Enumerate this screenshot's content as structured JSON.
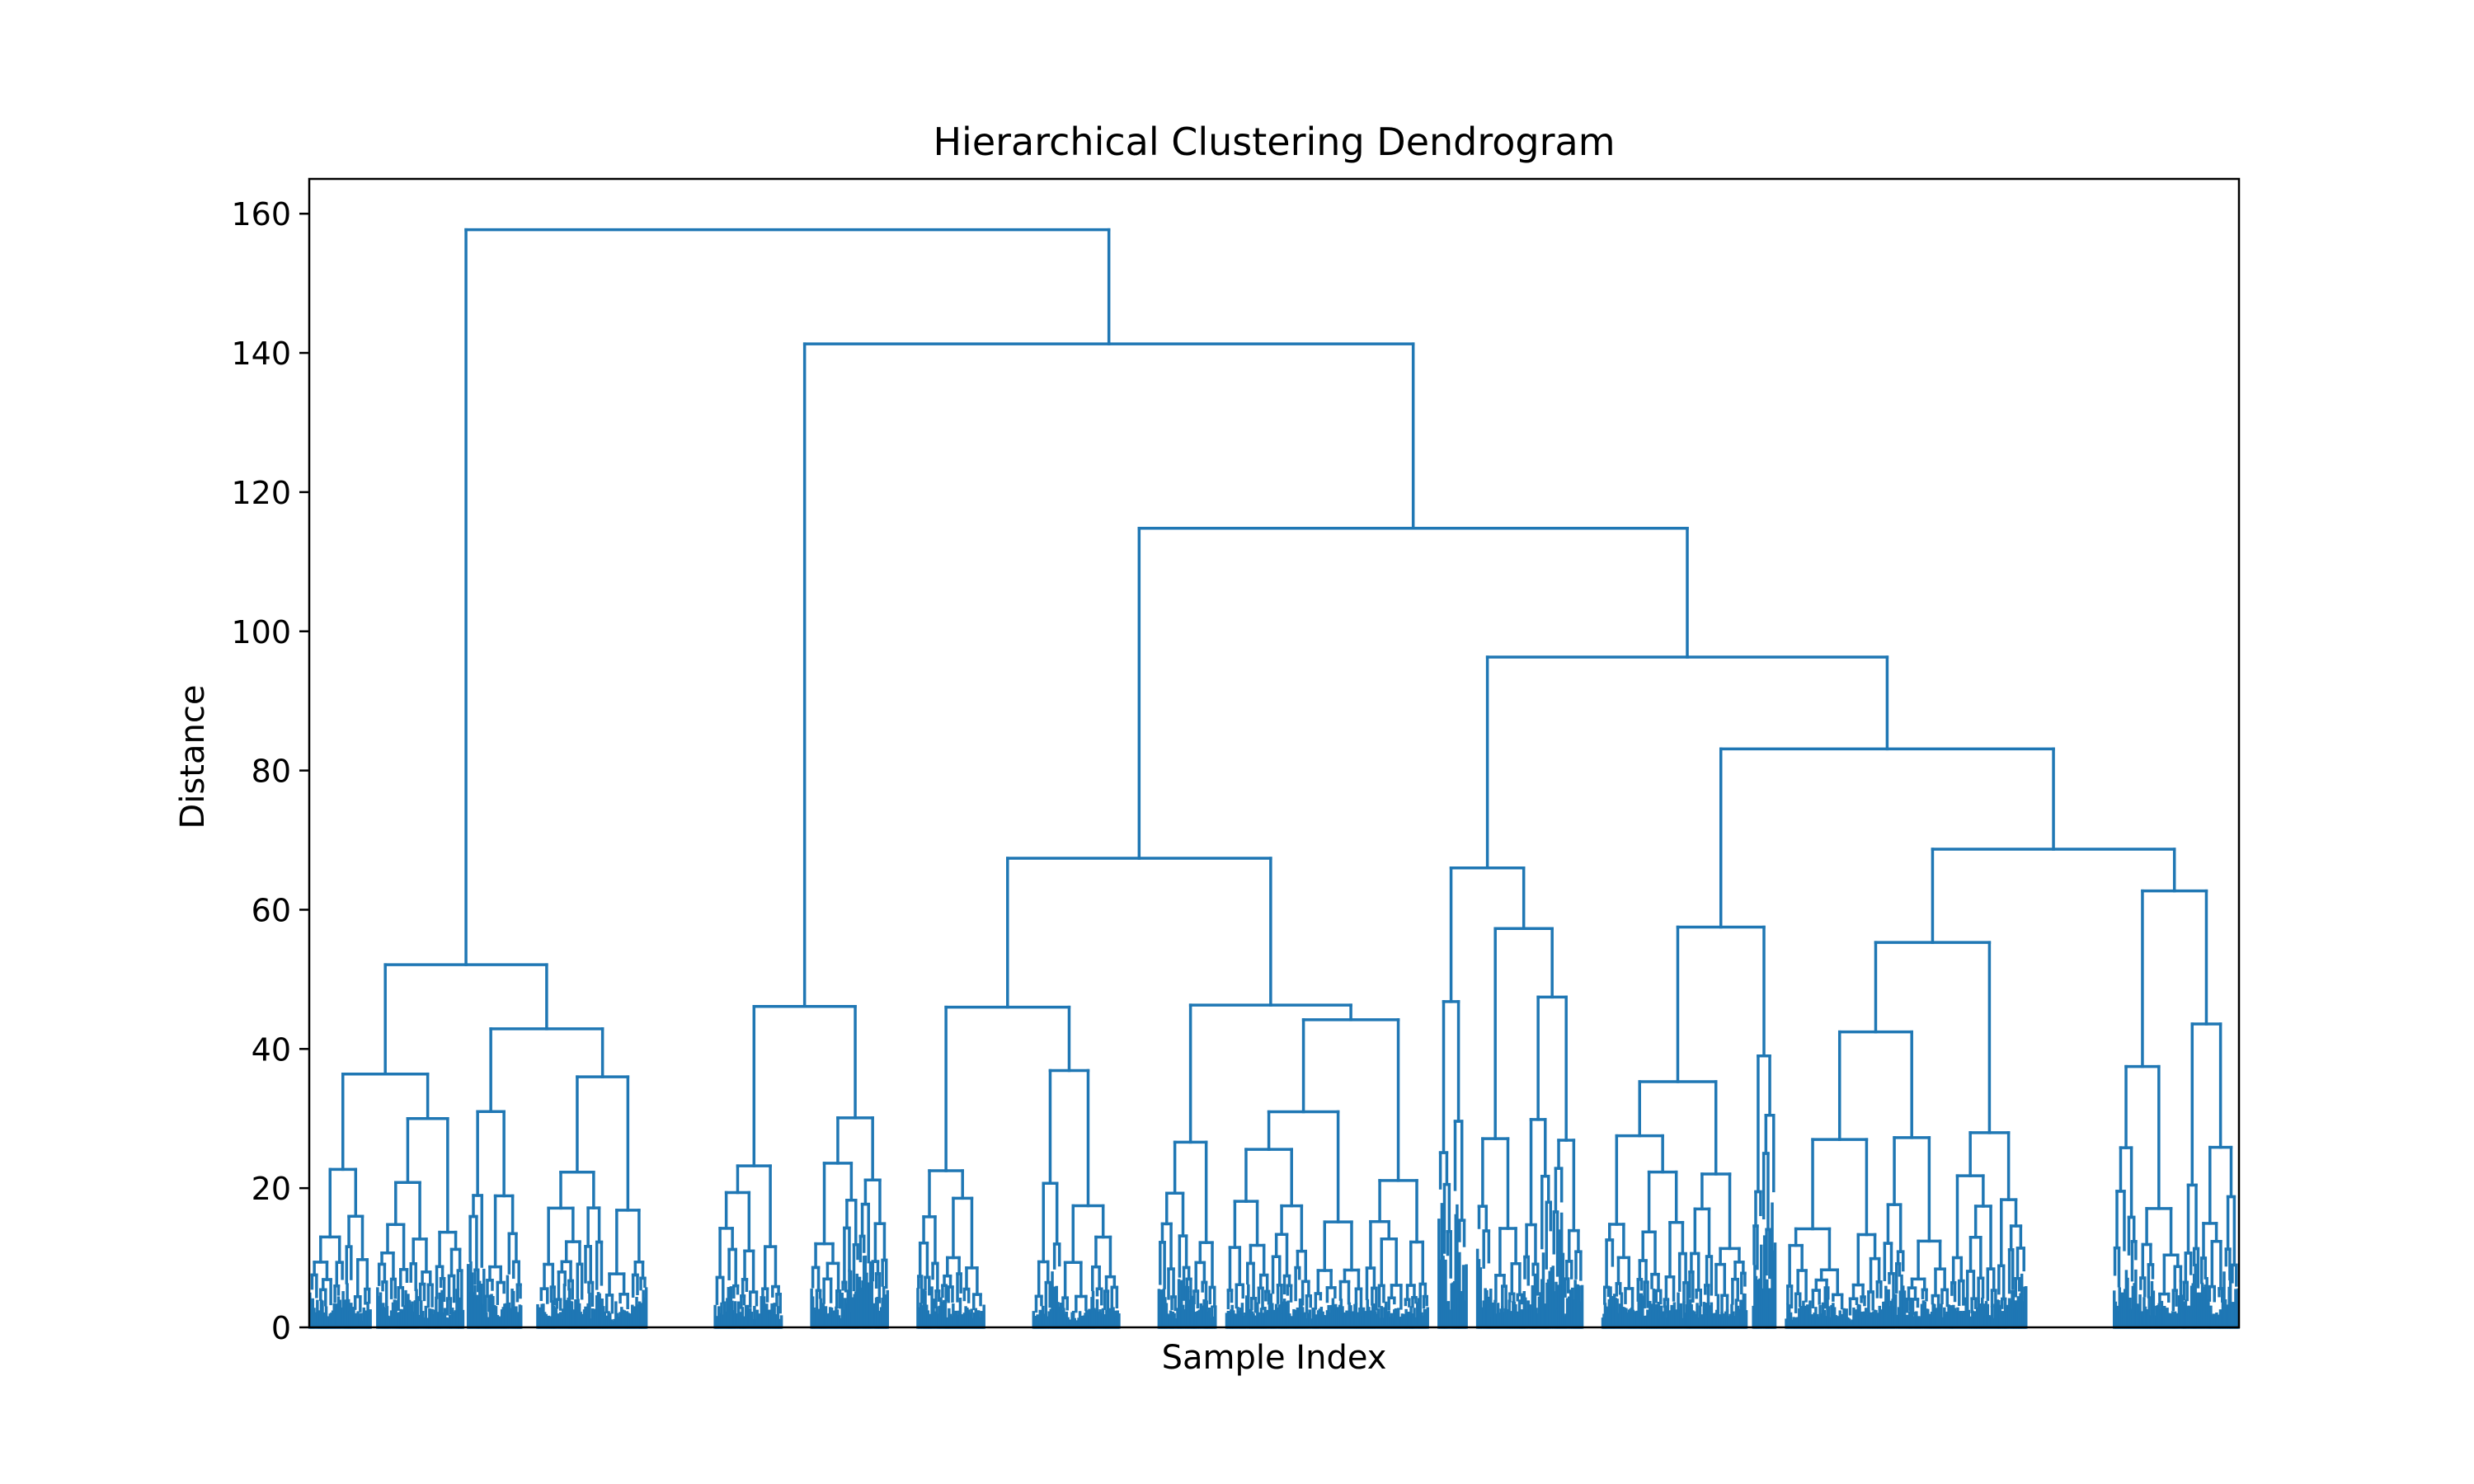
{
  "chart_data": {
    "type": "dendrogram",
    "title": "Hierarchical Clustering Dendrogram",
    "xlabel": "Sample Index",
    "ylabel": "Distance",
    "ylim": [
      0,
      165
    ],
    "yticks": [
      0,
      20,
      40,
      60,
      80,
      100,
      120,
      140,
      160
    ],
    "x_tick_labels_shown": false,
    "leaf_range": [
      0,
      1000
    ],
    "link_color": "#1f77b4",
    "grid": false,
    "merges": [
      {
        "id": "root",
        "height": 157.7,
        "children": [
          "left_group",
          "right_group"
        ]
      },
      {
        "id": "left_group",
        "height": 52.1,
        "children": [
          "lg_a",
          "lg_b"
        ]
      },
      {
        "id": "lg_a",
        "height": 36.4,
        "children": [
          "lg_a1",
          "lg_a2"
        ]
      },
      {
        "id": "lg_a1",
        "height": 22.7
      },
      {
        "id": "lg_a2",
        "height": 30.0
      },
      {
        "id": "lg_b",
        "height": 42.9,
        "children": [
          "lg_b1",
          "lg_b2"
        ]
      },
      {
        "id": "lg_b1",
        "height": 31.0
      },
      {
        "id": "lg_b2",
        "height": 36.0
      },
      {
        "id": "right_group",
        "height": 141.3,
        "children": [
          "rg_a",
          "rg_b"
        ]
      },
      {
        "id": "rg_a",
        "height": 46.1,
        "children": [
          "rg_a1",
          "rg_a2"
        ]
      },
      {
        "id": "rg_a1",
        "height": 23.2
      },
      {
        "id": "rg_a2",
        "height": 30.1
      },
      {
        "id": "rg_b",
        "height": 114.8,
        "children": [
          "mid_group",
          "far_group"
        ]
      },
      {
        "id": "mid_group",
        "height": 67.4,
        "children": [
          "mg_a",
          "mg_b"
        ]
      },
      {
        "id": "mg_a",
        "height": 46.0,
        "children": [
          "mg_a1",
          "mg_a2"
        ]
      },
      {
        "id": "mg_a1",
        "height": 22.5
      },
      {
        "id": "mg_a2",
        "height": 36.9
      },
      {
        "id": "mg_b",
        "height": 46.3,
        "children": [
          "mg_b1",
          "mg_b2"
        ]
      },
      {
        "id": "mg_b1",
        "height": 26.6
      },
      {
        "id": "mg_b2",
        "height": 44.2
      },
      {
        "id": "far_group",
        "height": 96.3,
        "children": [
          "fg_a",
          "fg_b"
        ]
      },
      {
        "id": "fg_a",
        "height": 66.0,
        "children": [
          "fg_a1",
          "fg_a2"
        ]
      },
      {
        "id": "fg_a1",
        "height": 46.8
      },
      {
        "id": "fg_a2",
        "height": 57.3
      },
      {
        "id": "fg_b",
        "height": 83.1,
        "children": [
          "fg_b1",
          "fg_b2"
        ]
      },
      {
        "id": "fg_b1",
        "height": 57.5,
        "children": [
          "fg_b1a",
          "fg_b1b"
        ]
      },
      {
        "id": "fg_b1a",
        "height": 35.3
      },
      {
        "id": "fg_b1b",
        "height": 39.0
      },
      {
        "id": "fg_b2",
        "height": 68.7,
        "children": [
          "fg_b2a",
          "fg_b2b"
        ]
      },
      {
        "id": "fg_b2a",
        "height": 55.3
      },
      {
        "id": "fg_b2b",
        "height": 62.7
      }
    ]
  }
}
